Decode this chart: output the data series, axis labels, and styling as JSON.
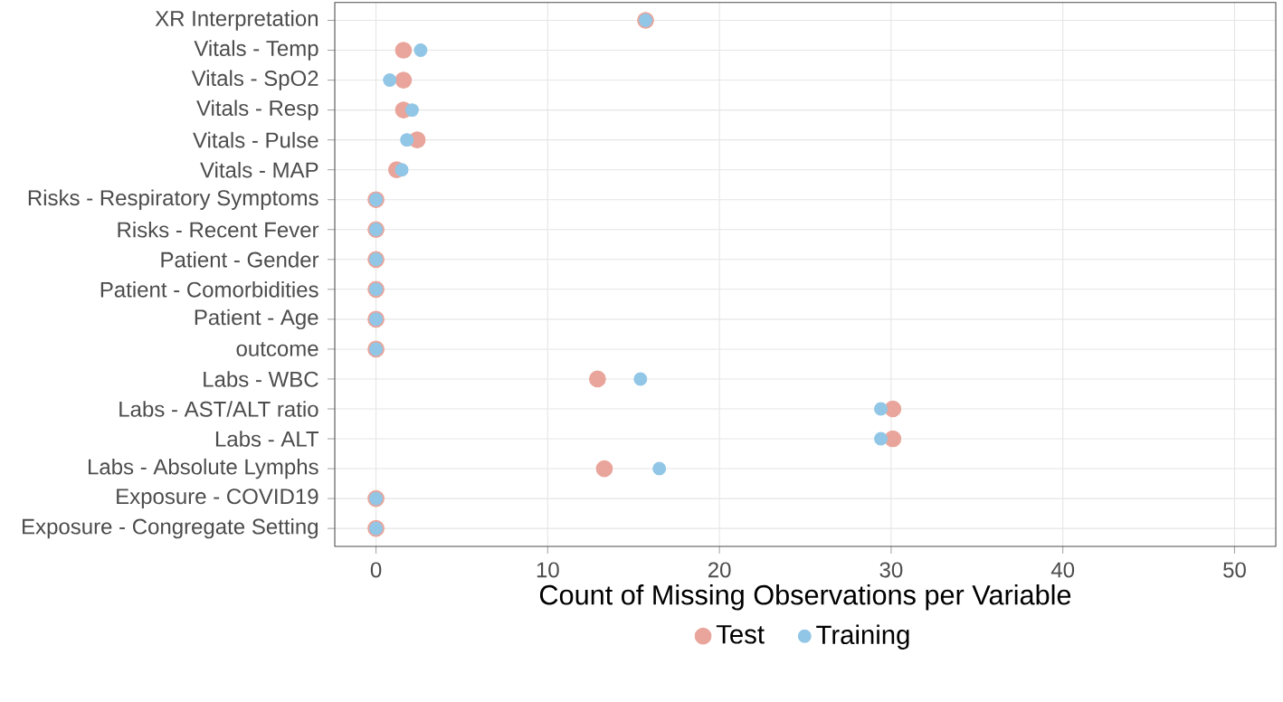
{
  "chart_data": {
    "type": "scatter",
    "xlabel": "Count of Missing Observations per Variable",
    "categories": [
      "XR Interpretation",
      "Vitals - Temp",
      "Vitals - SpO2",
      "Vitals - Resp",
      "Vitals - Pulse",
      "Vitals - MAP",
      "Risks - Respiratory Symptoms",
      "Risks - Recent Fever",
      "Patient - Gender",
      "Patient - Comorbidities",
      "Patient - Age",
      "outcome",
      "Labs - WBC",
      "Labs - AST/ALT ratio",
      "Labs - ALT",
      "Labs - Absolute Lymphs",
      "Exposure - COVID19",
      "Exposure - Congregate Setting"
    ],
    "orientation": "horizontal",
    "series": [
      {
        "name": "Test",
        "color": "#e9a59b",
        "values": [
          15.7,
          1.6,
          1.6,
          1.6,
          2.4,
          1.2,
          0,
          0,
          0,
          0,
          0,
          0,
          12.9,
          30.1,
          30.1,
          13.3,
          0,
          0
        ]
      },
      {
        "name": "Training",
        "color": "#91c6e6",
        "values": [
          15.7,
          2.6,
          0.8,
          2.1,
          1.8,
          1.5,
          0,
          0,
          0,
          0,
          0,
          0,
          15.4,
          29.4,
          29.4,
          16.5,
          0,
          0
        ]
      }
    ],
    "xlim": [
      -2.4,
      52.4
    ],
    "xticks": [
      0,
      10,
      20,
      30,
      40,
      50
    ],
    "grid": true,
    "legend": "bottom",
    "marker": "circle"
  }
}
